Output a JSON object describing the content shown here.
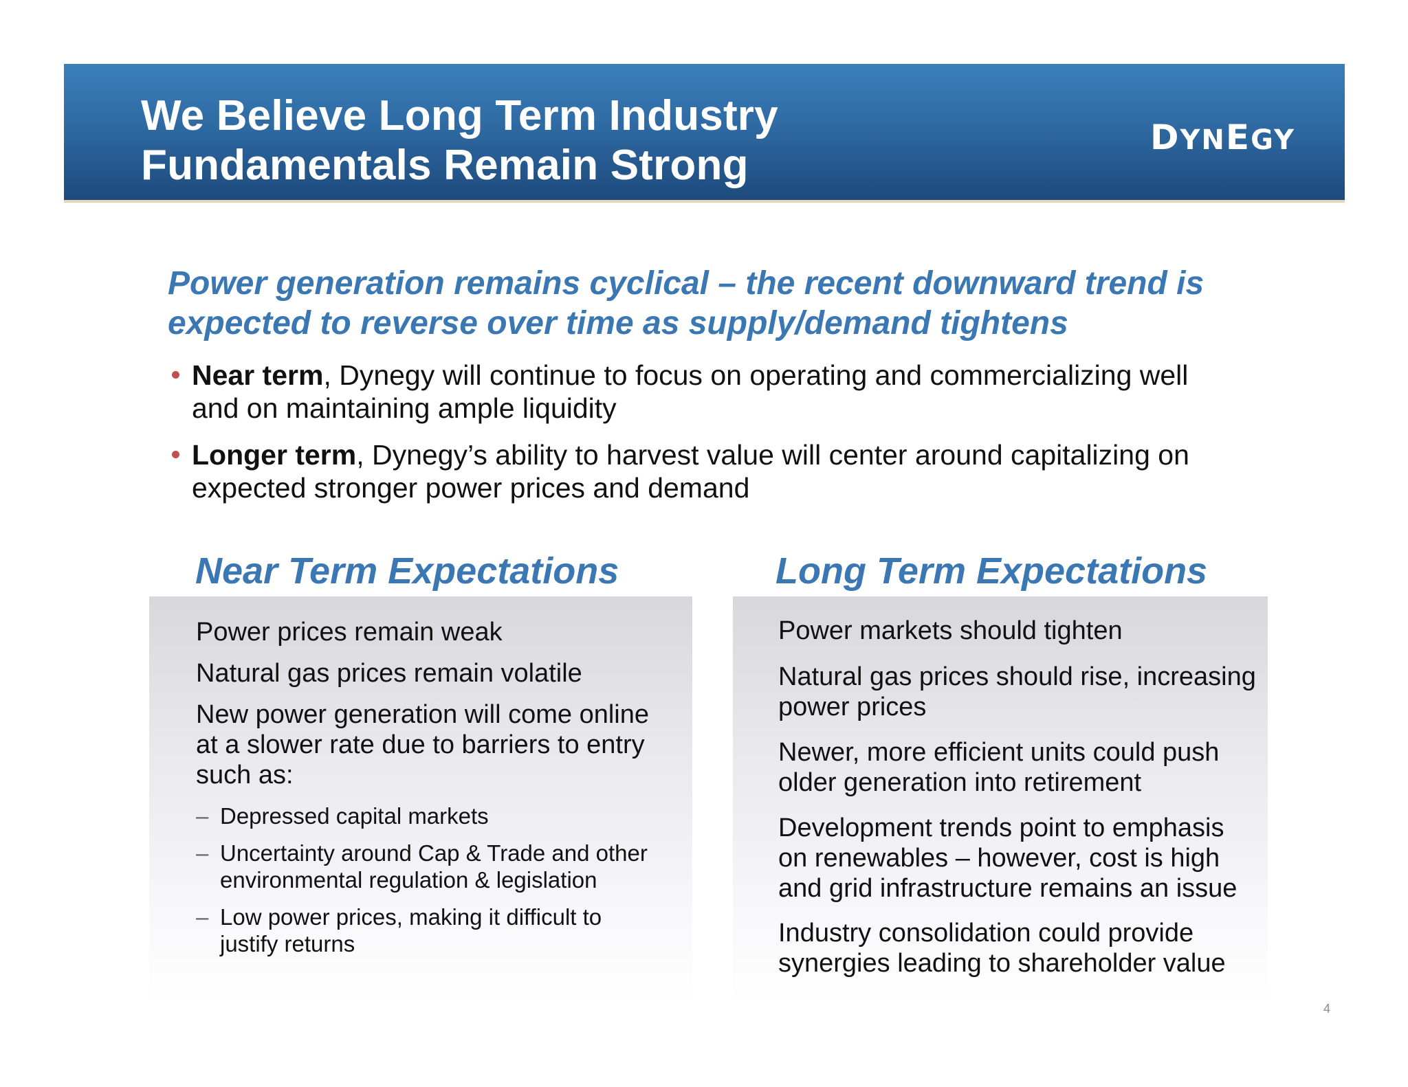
{
  "header": {
    "title_line1": "We Believe Long Term Industry",
    "title_line2": "Fundamentals Remain Strong",
    "logo_text": "Dynegy",
    "logo_first": "D",
    "logo_mid": "YN",
    "logo_e": "E",
    "logo_end": "GY"
  },
  "subtitle": {
    "line1": "Power generation remains cyclical – the recent downward trend is",
    "line2": "expected to reverse over time as supply/demand tightens"
  },
  "bullets": [
    {
      "bold": "Near term",
      "line1_rest": ", Dynegy will continue to focus on operating and commercializing well",
      "line2": "and on maintaining ample liquidity"
    },
    {
      "bold": "Longer term",
      "line1_rest": ", Dynegy’s ability to harvest value will center around capitalizing on",
      "line2": "expected stronger power prices and demand"
    }
  ],
  "near_term": {
    "heading": "Near Term Expectations",
    "items": [
      [
        "Power prices remain weak"
      ],
      [
        "Natural gas prices remain volatile"
      ],
      [
        "New power generation will come online",
        "at a slower rate due to barriers to entry",
        "such as:"
      ]
    ],
    "sub_items": [
      [
        "Depressed capital markets"
      ],
      [
        "Uncertainty around Cap & Trade and other",
        "environmental regulation & legislation"
      ],
      [
        "Low power prices, making it difficult to",
        "justify returns"
      ]
    ],
    "dash": "–"
  },
  "long_term": {
    "heading": "Long Term Expectations",
    "items": [
      [
        "Power markets should tighten"
      ],
      [
        "Natural gas prices should rise, increasing",
        "power prices"
      ],
      [
        "Newer, more efficient units could push",
        "older generation into retirement"
      ],
      [
        "Development trends point to emphasis",
        "on renewables – however, cost is high",
        "and grid infrastructure remains an issue"
      ],
      [
        "Industry consolidation could provide",
        "synergies leading to shareholder value"
      ]
    ]
  },
  "page_number": "4"
}
